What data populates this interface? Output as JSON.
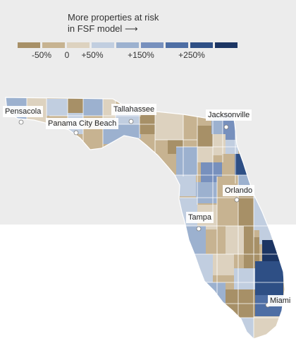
{
  "legend": {
    "title_line1": "More properties at risk",
    "title_line2": "in FSF model",
    "arrow": "⟶",
    "colors": [
      "#a79067",
      "#c7b391",
      "#ddd2bf",
      "#c1cee0",
      "#9cb1cf",
      "#7790bd",
      "#4e6ea4",
      "#2e4f85",
      "#1c3563"
    ],
    "labels": [
      "-50%",
      "0",
      "+50%",
      "+150%",
      "+250%"
    ]
  },
  "cities": [
    {
      "name": "Pensacola",
      "label": "Pensacola"
    },
    {
      "name": "Panama City Beach",
      "label": "Panama City Beach"
    },
    {
      "name": "Tallahassee",
      "label": "Tallahassee"
    },
    {
      "name": "Jacksonville",
      "label": "Jacksonville"
    },
    {
      "name": "Orlando",
      "label": "Orlando"
    },
    {
      "name": "Tampa",
      "label": "Tampa"
    },
    {
      "name": "Miami",
      "label": "Miami"
    }
  ]
}
